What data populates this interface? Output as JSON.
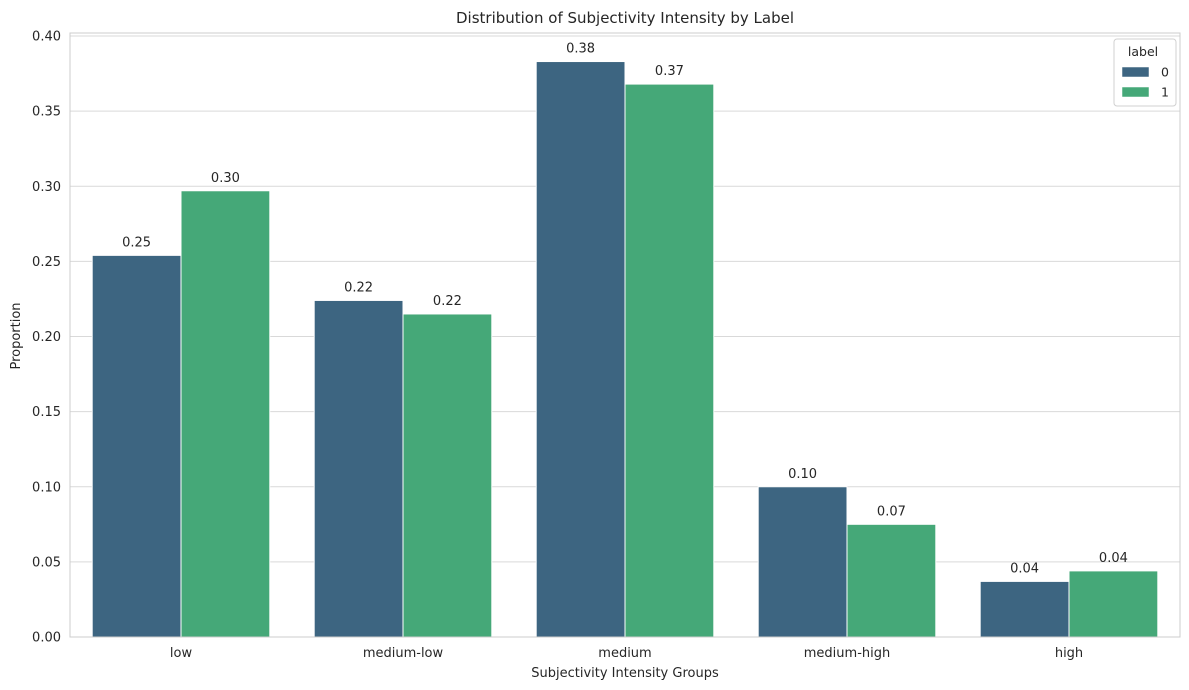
{
  "chart_data": {
    "type": "bar",
    "title": "Distribution of Subjectivity Intensity by Label",
    "xlabel": "Subjectivity Intensity Groups",
    "ylabel": "Proportion",
    "categories": [
      "low",
      "medium-low",
      "medium",
      "medium-high",
      "high"
    ],
    "series": [
      {
        "name": "0",
        "color": "#3d6581",
        "values": [
          0.254,
          0.224,
          0.383,
          0.1,
          0.037
        ],
        "labels": [
          "0.25",
          "0.22",
          "0.38",
          "0.10",
          "0.04"
        ]
      },
      {
        "name": "1",
        "color": "#45a878",
        "values": [
          0.297,
          0.215,
          0.368,
          0.075,
          0.044
        ],
        "labels": [
          "0.30",
          "0.22",
          "0.37",
          "0.07",
          "0.04"
        ]
      }
    ],
    "ylim": [
      0,
      0.4
    ],
    "yticks": [
      "0.00",
      "0.05",
      "0.10",
      "0.15",
      "0.20",
      "0.25",
      "0.30",
      "0.35",
      "0.40"
    ],
    "ytick_values": [
      0,
      0.05,
      0.1,
      0.15,
      0.2,
      0.25,
      0.3,
      0.35,
      0.4
    ],
    "legend": {
      "title": "label",
      "placement": "top-right"
    },
    "grid": "y"
  }
}
